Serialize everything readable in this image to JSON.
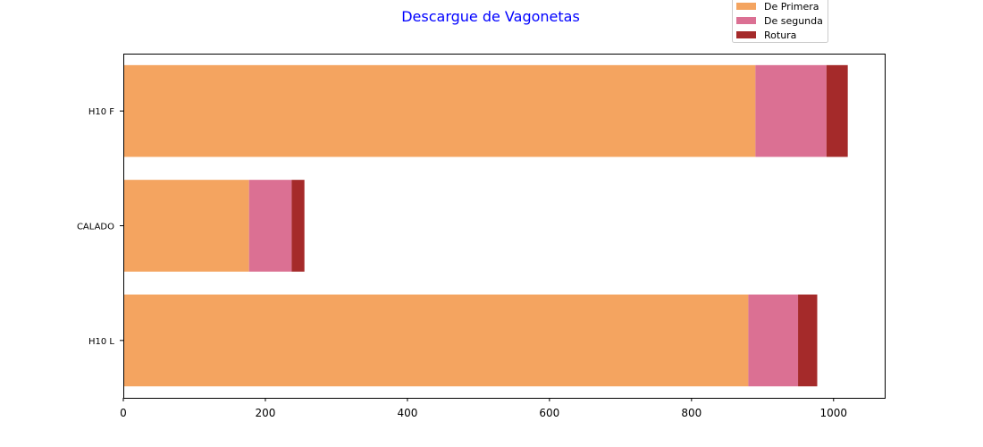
{
  "chart_data": {
    "type": "bar",
    "orientation": "horizontal",
    "stacked": true,
    "title": "Descargue de Vagonetas",
    "title_color": "#0000ff",
    "categories": [
      "H10 L",
      "CALADO",
      "H10 F"
    ],
    "series": [
      {
        "name": "De Primera",
        "color": "#f4a460",
        "values": [
          880,
          177,
          890
        ]
      },
      {
        "name": "De segunda",
        "color": "#db7093",
        "values": [
          70,
          60,
          100
        ]
      },
      {
        "name": "Rotura",
        "color": "#a52a2a",
        "values": [
          27,
          18,
          30
        ]
      }
    ],
    "xlim": [
      0,
      1072
    ],
    "xticks": [
      0,
      200,
      400,
      600,
      800,
      1000
    ],
    "xtick_labels": [
      "0",
      "200",
      "400",
      "600",
      "800",
      "1000"
    ],
    "xlabel": "",
    "ylabel": "",
    "grid": false,
    "legend_position": "top-right"
  }
}
